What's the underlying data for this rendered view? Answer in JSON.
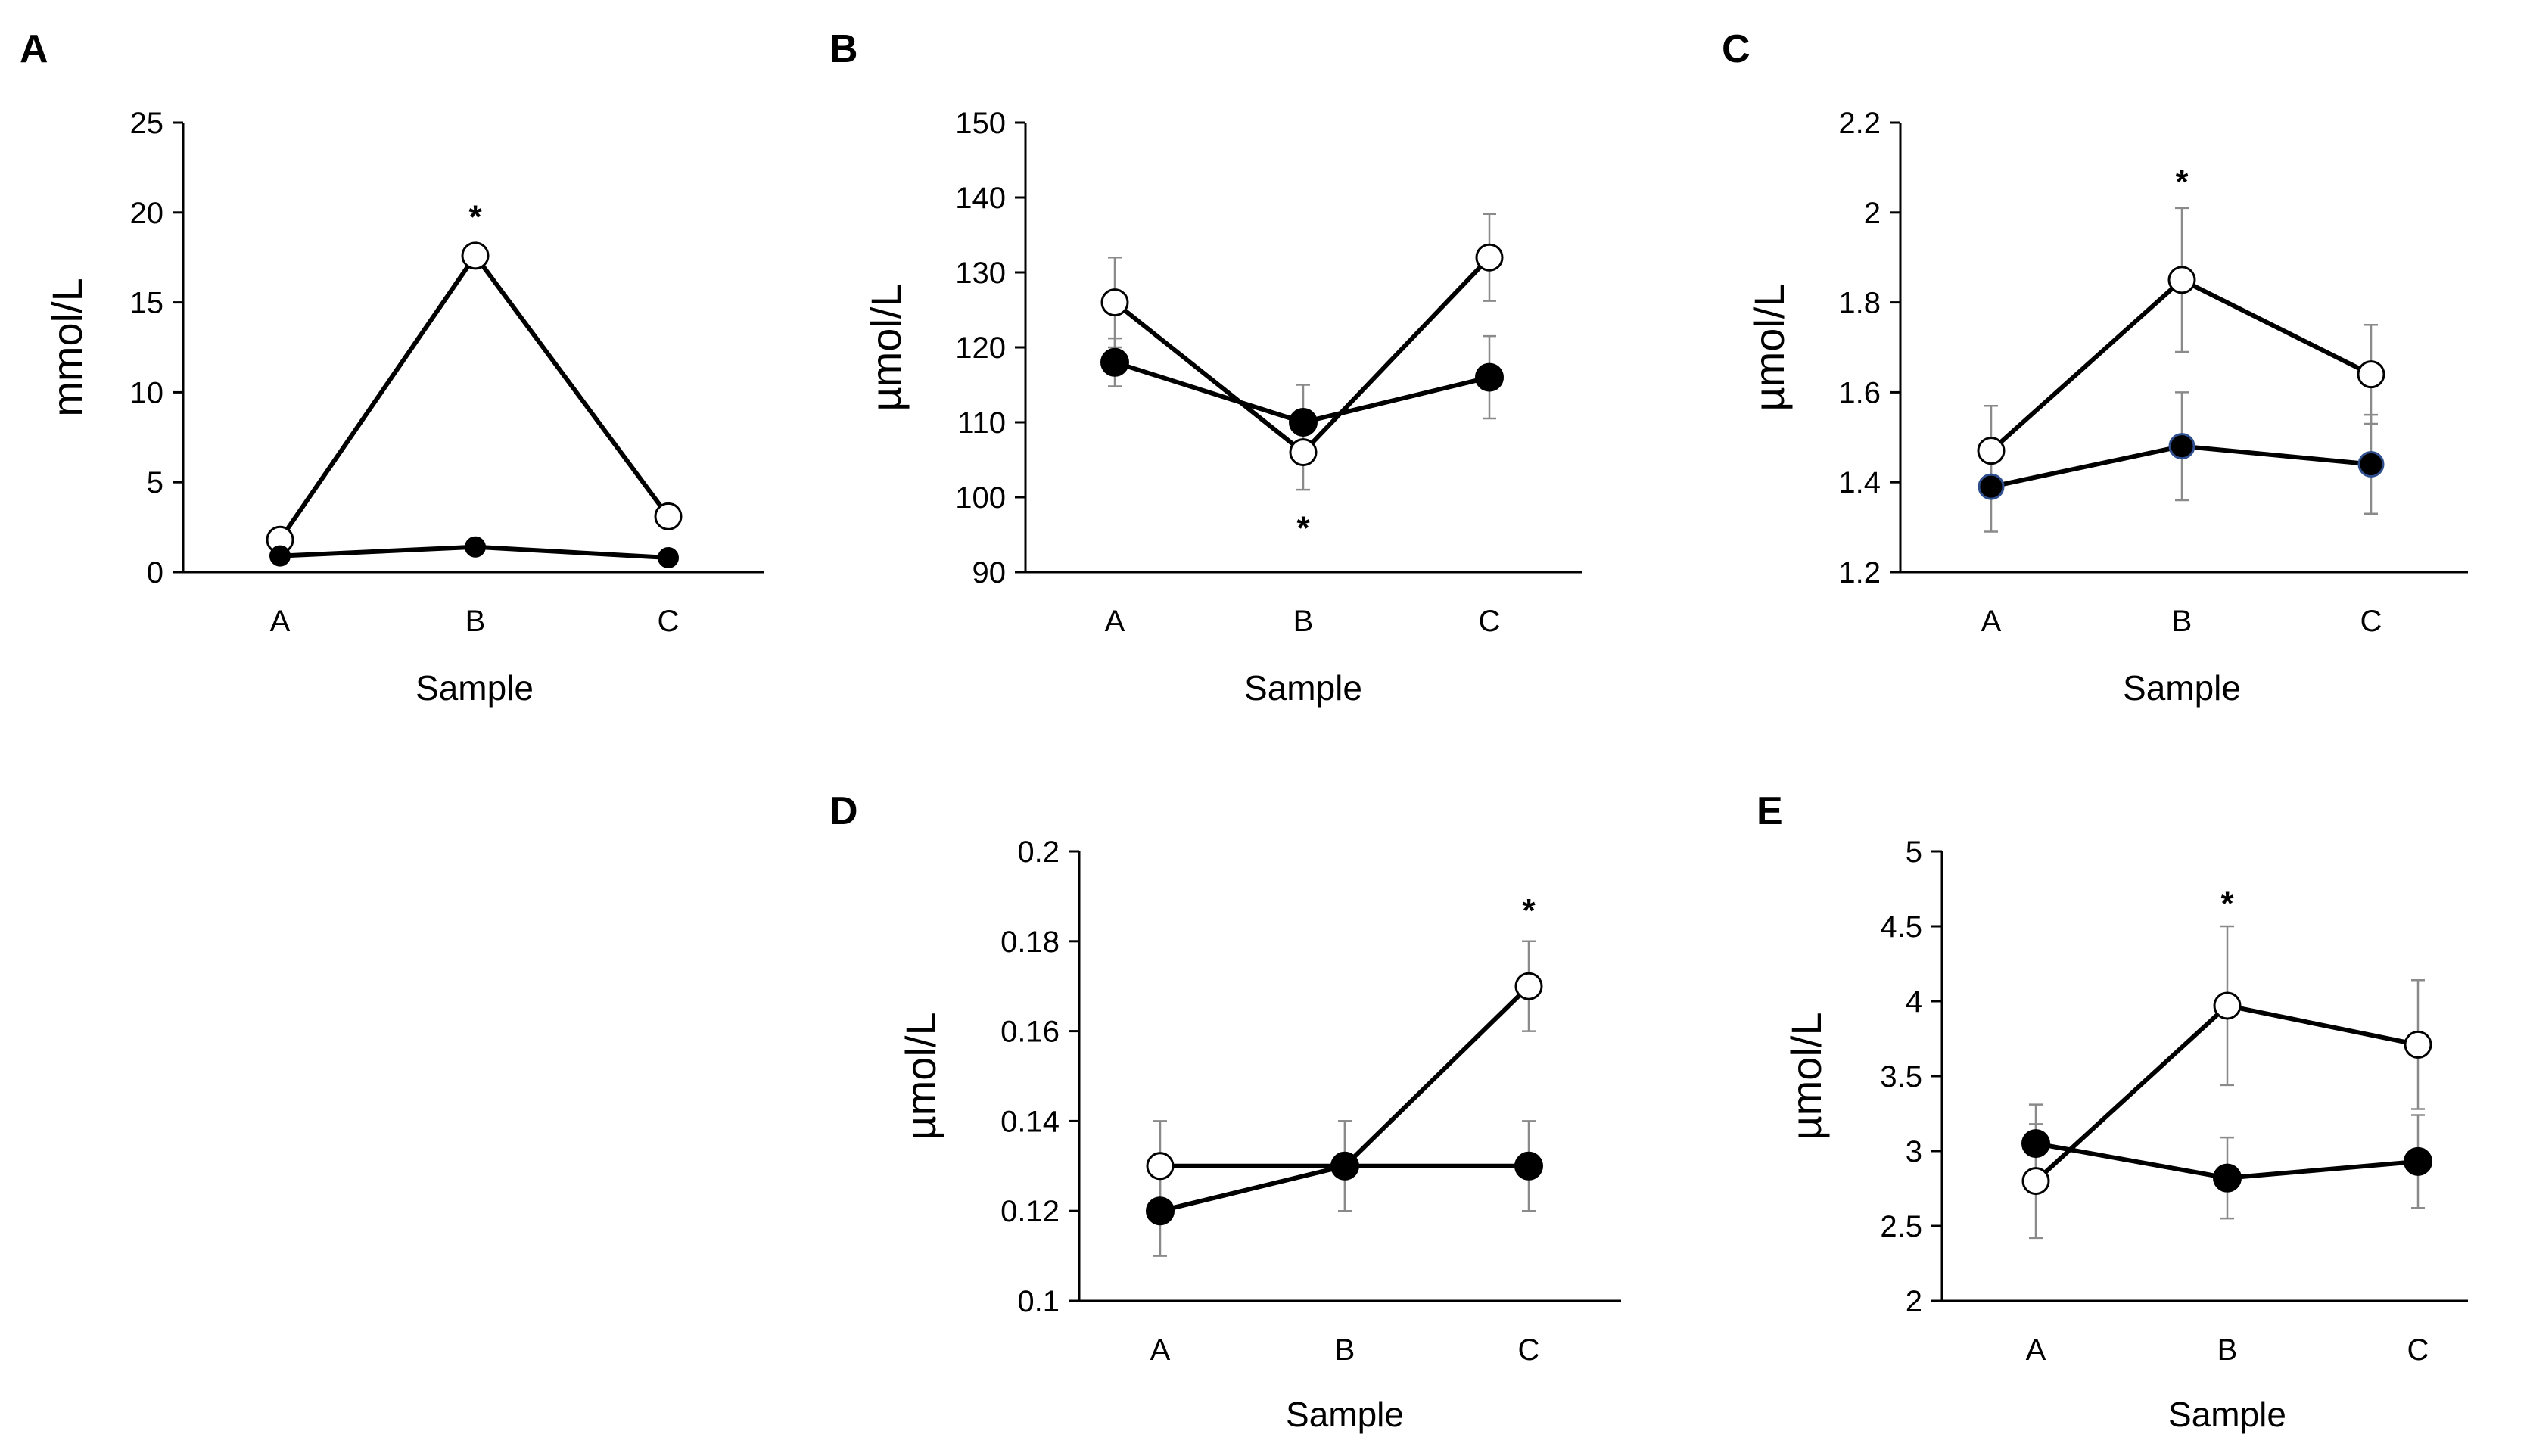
{
  "chart_data": [
    {
      "id": "A",
      "panel_label": "A",
      "type": "line",
      "xlabel": "Sample",
      "ylabel": "mmol/L",
      "categories": [
        "A",
        "B",
        "C"
      ],
      "ylim": [
        0,
        25
      ],
      "yticks": [
        0,
        5,
        10,
        15,
        20,
        25
      ],
      "ytick_labels": [
        "0",
        "5",
        "10",
        "15",
        "20",
        "25"
      ],
      "series": [
        {
          "name": "open-circles",
          "marker": "open",
          "values": [
            1.8,
            17.6,
            3.1
          ],
          "errors": [
            0,
            0,
            0
          ]
        },
        {
          "name": "filled-circles",
          "marker": "filled",
          "values": [
            0.9,
            1.4,
            0.8
          ],
          "errors": [
            0,
            0,
            0
          ]
        }
      ],
      "annotations": [
        {
          "text": "*",
          "category": "B",
          "y": 19.8
        }
      ]
    },
    {
      "id": "B",
      "panel_label": "B",
      "type": "line",
      "xlabel": "Sample",
      "ylabel": "µmol/L",
      "categories": [
        "A",
        "B",
        "C"
      ],
      "ylim": [
        90,
        150
      ],
      "yticks": [
        90,
        100,
        110,
        120,
        130,
        140,
        150
      ],
      "ytick_labels": [
        "90",
        "100",
        "110",
        "120",
        "130",
        "140",
        "150"
      ],
      "series": [
        {
          "name": "open-circles",
          "marker": "open",
          "values": [
            126,
            106,
            132
          ],
          "errors": [
            6,
            5,
            5.8
          ]
        },
        {
          "name": "filled-circles",
          "marker": "filled",
          "values": [
            118,
            110,
            116
          ],
          "errors": [
            3.2,
            5,
            5.5
          ]
        }
      ],
      "annotations": [
        {
          "text": "*",
          "category": "B",
          "y": 96
        }
      ]
    },
    {
      "id": "C",
      "panel_label": "C",
      "type": "line",
      "xlabel": "Sample",
      "ylabel": "µmol/L",
      "categories": [
        "A",
        "B",
        "C"
      ],
      "ylim": [
        1.2,
        2.2
      ],
      "yticks": [
        1.2,
        1.4,
        1.6,
        1.8,
        2.0,
        2.2
      ],
      "ytick_labels": [
        "1.2",
        "1.4",
        "1.6",
        "1.8",
        "2",
        "2.2"
      ],
      "series": [
        {
          "name": "open-circles",
          "marker": "open",
          "values": [
            1.47,
            1.85,
            1.64
          ],
          "errors": [
            0.1,
            0.16,
            0.11
          ]
        },
        {
          "name": "filled-circles",
          "marker": "filled-blue-edge",
          "values": [
            1.39,
            1.48,
            1.44
          ],
          "errors": [
            0.1,
            0.12,
            0.11
          ]
        }
      ],
      "annotations": [
        {
          "text": "*",
          "category": "B",
          "y": 2.07
        }
      ]
    },
    {
      "id": "D",
      "panel_label": "D",
      "type": "line",
      "xlabel": "Sample",
      "ylabel": "µmol/L",
      "categories": [
        "A",
        "B",
        "C"
      ],
      "ylim": [
        0.1,
        0.2
      ],
      "yticks": [
        0.1,
        0.12,
        0.14,
        0.16,
        0.18,
        0.2
      ],
      "ytick_labels": [
        "0.1",
        "0.12",
        "0.14",
        "0.16",
        "0.18",
        "0.2"
      ],
      "series": [
        {
          "name": "open-circles",
          "marker": "open",
          "values": [
            0.13,
            0.13,
            0.17
          ],
          "errors": [
            0.01,
            0.01,
            0.01
          ]
        },
        {
          "name": "filled-circles",
          "marker": "filled",
          "values": [
            0.12,
            0.13,
            0.13
          ],
          "errors": [
            0.01,
            0.01,
            0.01
          ]
        }
      ],
      "annotations": [
        {
          "text": "*",
          "category": "C",
          "y": 0.187
        }
      ]
    },
    {
      "id": "E",
      "panel_label": "E",
      "type": "line",
      "xlabel": "Sample",
      "ylabel": "µmol/L",
      "categories": [
        "A",
        "B",
        "C"
      ],
      "ylim": [
        2,
        5
      ],
      "yticks": [
        2,
        2.5,
        3,
        3.5,
        4,
        4.5,
        5
      ],
      "ytick_labels": [
        "2",
        "2.5",
        "3",
        "3.5",
        "4",
        "4.5",
        "5"
      ],
      "series": [
        {
          "name": "open-circles",
          "marker": "open",
          "values": [
            2.8,
            3.97,
            3.71
          ],
          "errors": [
            0.38,
            0.53,
            0.43
          ]
        },
        {
          "name": "filled-circles",
          "marker": "filled",
          "values": [
            3.05,
            2.82,
            2.93
          ],
          "errors": [
            0.26,
            0.27,
            0.31
          ]
        }
      ],
      "annotations": [
        {
          "text": "*",
          "category": "B",
          "y": 4.66
        }
      ]
    }
  ]
}
